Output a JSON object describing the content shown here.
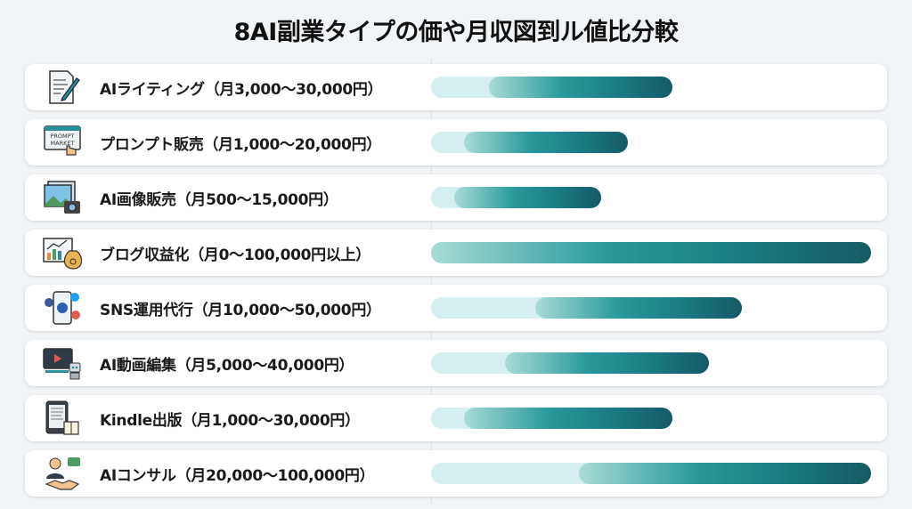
{
  "chart_data": {
    "type": "bar",
    "orientation": "horizontal",
    "subtype": "range",
    "title": "8AI副業タイプの価や月収図到ル値比分較",
    "xlabel": "",
    "ylabel": "",
    "unit": "円/月",
    "grid": false,
    "legend": "none",
    "xlim": [
      0,
      100000
    ],
    "colors": {
      "range_light": "#d5eef0",
      "bar_start": "#a8dcd6",
      "bar_mid": "#2a9a9b",
      "bar_end": "#155a66"
    },
    "categories": [
      {
        "label": "AIライティング（月3,000〜30,000円）",
        "icon": "document-pen-icon",
        "min": 3000,
        "max": 30000
      },
      {
        "label": "プロンプト販売（月1,000〜20,000円）",
        "icon": "prompt-market-icon",
        "icon_text": "PROMPT MARKET",
        "min": 1000,
        "max": 20000
      },
      {
        "label": "AI画像販売（月500〜15,000円）",
        "icon": "image-camera-icon",
        "min": 500,
        "max": 15000
      },
      {
        "label": "ブログ収益化（月0〜100,000円以上）",
        "icon": "blog-chart-moneybag-icon",
        "min": 0,
        "max": 100000
      },
      {
        "label": "SNS運用代行（月10,000〜50,000円）",
        "icon": "smartphone-social-icon",
        "min": 10000,
        "max": 50000
      },
      {
        "label": "AI動画編集（月5,000〜40,000円）",
        "icon": "video-robot-icon",
        "min": 5000,
        "max": 40000
      },
      {
        "label": "Kindle出版（月1,000〜30,000円）",
        "icon": "ebook-reader-icon",
        "min": 1000,
        "max": 30000
      },
      {
        "label": "AIコンサル（月20,000〜100,000円）",
        "icon": "consultant-handshake-icon",
        "min": 20000,
        "max": 100000
      }
    ]
  }
}
